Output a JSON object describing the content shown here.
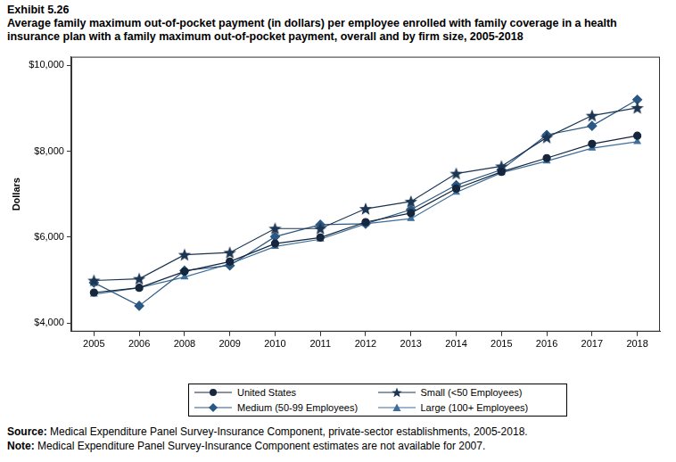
{
  "chart_data": {
    "type": "line",
    "title": "Exhibit 5.26",
    "subtitle": "Average family maximum out-of-pocket payment (in dollars) per employee enrolled with family coverage in a health insurance plan with a family maximum out-of-pocket payment, overall and by firm size, 2005-2018",
    "y_label": "Dollars",
    "categories": [
      "2005",
      "2006",
      "2008",
      "2009",
      "2010",
      "2011",
      "2012",
      "2013",
      "2014",
      "2015",
      "2016",
      "2017",
      "2018"
    ],
    "series": [
      {
        "name": "United States",
        "color": "#15263d",
        "marker": "circle",
        "values": [
          4710,
          4820,
          5200,
          5430,
          5850,
          5990,
          6350,
          6560,
          7130,
          7520,
          7840,
          8170,
          8360
        ]
      },
      {
        "name": "Small (<50 Employees)",
        "color": "#1c3553",
        "marker": "star",
        "values": [
          4990,
          5030,
          5590,
          5640,
          6200,
          6200,
          6660,
          6830,
          7480,
          7650,
          8320,
          8830,
          9010
        ]
      },
      {
        "name": "Medium (50-99 Employees)",
        "color": "#2b5882",
        "marker": "diamond",
        "values": [
          4940,
          4400,
          5220,
          5340,
          6010,
          6290,
          6310,
          6640,
          7210,
          7570,
          8380,
          8590,
          9200
        ]
      },
      {
        "name": "Large (100+ Employees)",
        "color": "#3e6f9c",
        "marker": "triangle",
        "values": [
          4670,
          4820,
          5070,
          5380,
          5780,
          5950,
          6310,
          6430,
          7040,
          7500,
          7770,
          8070,
          8220
        ]
      }
    ],
    "ylim": [
      3800,
      10200
    ],
    "yticks": [
      {
        "value": 4000,
        "label": "$4,000"
      },
      {
        "value": 6000,
        "label": "$6,000"
      },
      {
        "value": 8000,
        "label": "$8,000"
      },
      {
        "value": 10000,
        "label": "$10,000"
      }
    ],
    "grid": false,
    "legend": "bottom",
    "source": {
      "label": "Source:",
      "text": "Medical Expenditure Panel Survey-Insurance Component, private-sector establishments, 2005-2018."
    },
    "note": {
      "label": "Note:",
      "text": "Medical Expenditure Panel Survey-Insurance Component estimates are not available for 2007."
    }
  }
}
